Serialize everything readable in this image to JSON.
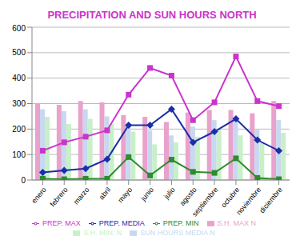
{
  "chart_data": {
    "type": "bar",
    "title": "PRECIPITATION AND SUN HOURS NORTH",
    "categories": [
      "enero",
      "febrero",
      "marzo",
      "abril",
      "mayo",
      "junio",
      "julio",
      "agosto",
      "septiembre",
      "octubre",
      "noviembre",
      "diciembre"
    ],
    "series": [
      {
        "name": "S.H. MAX N",
        "type": "bar",
        "color": "#e8a2cc",
        "values": [
          300,
          295,
          310,
          305,
          255,
          248,
          228,
          265,
          275,
          275,
          262,
          310
        ]
      },
      {
        "name": "SUN HOURS MEDIA N",
        "type": "bar",
        "color": "#c8d8f0",
        "values": [
          278,
          270,
          278,
          250,
          220,
          195,
          175,
          210,
          235,
          245,
          200,
          235
        ]
      },
      {
        "name": "S.H. MIN. N",
        "type": "bar",
        "color": "#c8f0c8",
        "values": [
          248,
          220,
          240,
          220,
          190,
          140,
          148,
          170,
          200,
          175,
          145,
          185
        ]
      },
      {
        "name": "PREP. MEDIA",
        "type": "line",
        "color": "#1a2ea8",
        "marker": "diamond",
        "values": [
          30,
          38,
          45,
          82,
          215,
          215,
          278,
          148,
          190,
          240,
          157,
          115
        ]
      },
      {
        "name": "PREP. MAX",
        "type": "line",
        "color": "#cc33cc",
        "marker": "square",
        "values": [
          115,
          148,
          170,
          195,
          335,
          440,
          410,
          235,
          305,
          485,
          310,
          290
        ]
      },
      {
        "name": "PREP. MIN",
        "type": "line",
        "color": "#2e8b2e",
        "marker": "square",
        "values": [
          5,
          3,
          5,
          5,
          90,
          18,
          80,
          32,
          28,
          85,
          8,
          3
        ]
      }
    ],
    "ylim": [
      0,
      600
    ],
    "yticks": [
      0,
      100,
      200,
      300,
      400,
      500,
      600
    ],
    "grid": true,
    "legend": "bottom"
  }
}
